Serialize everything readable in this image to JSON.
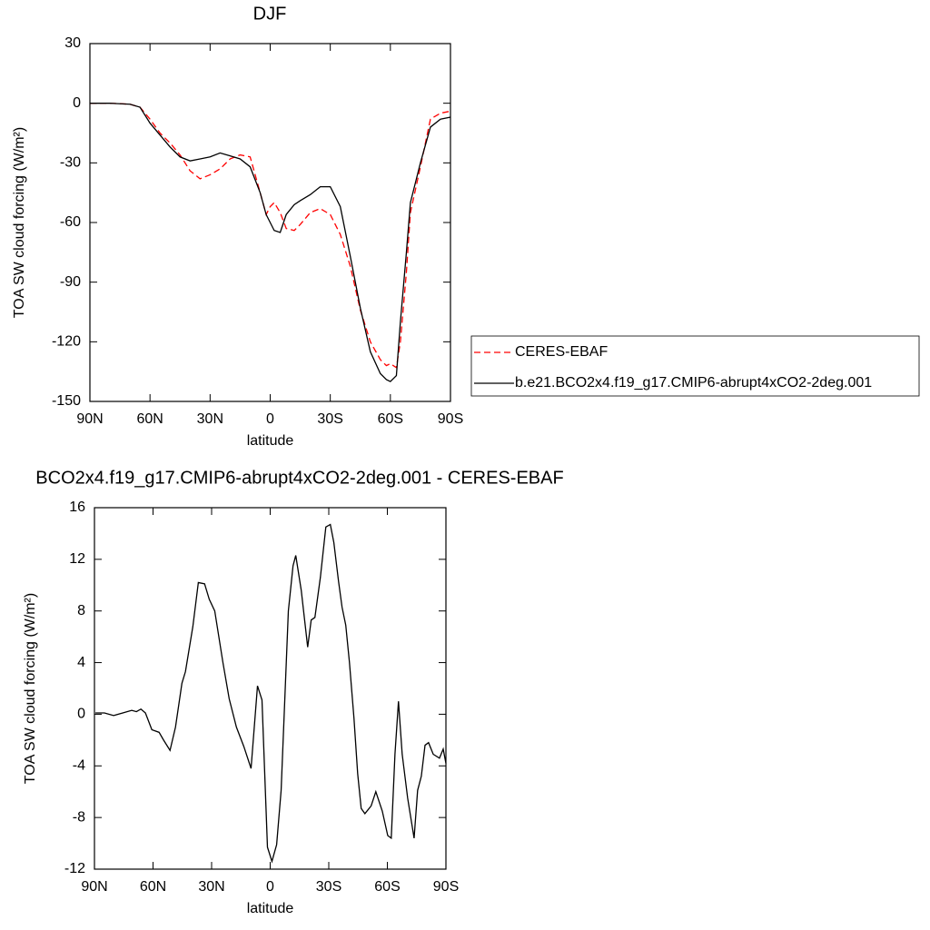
{
  "chart_data": [
    {
      "type": "line",
      "title": "DJF",
      "xlabel": "latitude",
      "ylabel": "TOA SW cloud forcing (W/m²)",
      "x": [
        90,
        80,
        70,
        65,
        60,
        55,
        50,
        45,
        40,
        35,
        30,
        25,
        20,
        15,
        10,
        5,
        2,
        0,
        -2,
        -5,
        -8,
        -12,
        -15,
        -20,
        -25,
        -30,
        -35,
        -40,
        -45,
        -50,
        -55,
        -58,
        -60,
        -63,
        -65,
        -68,
        -70,
        -75,
        -80,
        -85,
        -90
      ],
      "series": [
        {
          "name": "CERES-EBAF",
          "color": "#ff0000",
          "style": "dashed",
          "values": [
            0,
            0,
            -0.5,
            -2,
            -8,
            -15,
            -20,
            -26,
            -34,
            -38,
            -36,
            -33,
            -28,
            -26,
            -27,
            -45,
            -56,
            -52,
            -50,
            -55,
            -63,
            -64,
            -61,
            -55,
            -53,
            -56,
            -66,
            -82,
            -104,
            -120,
            -129,
            -132,
            -131,
            -133,
            -120,
            -85,
            -55,
            -32,
            -8,
            -5,
            -4
          ]
        },
        {
          "name": "b.e21.BCO2x4.f19_g17.CMIP6-abrupt4xCO2-2deg.001",
          "color": "#000000",
          "style": "solid",
          "values": [
            0,
            0,
            -0.5,
            -2,
            -10,
            -16,
            -22,
            -27,
            -29,
            -28,
            -27,
            -25,
            -26.5,
            -28,
            -32,
            -45,
            -56,
            -60,
            -64,
            -65,
            -56,
            -51,
            -49,
            -46,
            -42,
            -42,
            -52,
            -77,
            -103,
            -125,
            -136,
            -139,
            -140,
            -137,
            -110,
            -75,
            -50,
            -30,
            -12,
            -8,
            -7
          ]
        }
      ],
      "xlim": [
        90,
        -90
      ],
      "xticks": [
        {
          "value": 90,
          "label": "90N"
        },
        {
          "value": 60,
          "label": "60N"
        },
        {
          "value": 30,
          "label": "30N"
        },
        0,
        {
          "value": -30,
          "label": "30S"
        },
        {
          "value": -60,
          "label": "60S"
        },
        {
          "value": -90,
          "label": "90S"
        }
      ],
      "ylim": [
        -150,
        30
      ],
      "yticks": [
        -150,
        -120,
        -90,
        -60,
        -30,
        0,
        30
      ],
      "legend": "right"
    },
    {
      "type": "line",
      "title": "BCO2x4.f19_g17.CMIP6-abrupt4xCO2-2deg.001 - CERES-EBAF",
      "xlabel": "latitude",
      "ylabel": "TOA SW cloud forcing (W/m²)",
      "x": [
        89.5,
        84.9,
        80.2,
        75.5,
        70.9,
        68.5,
        66.2,
        63.9,
        60.6,
        56.9,
        54.6,
        51.3,
        48.5,
        45.2,
        43.4,
        39.6,
        36.8,
        33.6,
        31.2,
        28.4,
        24.2,
        21,
        17.3,
        13.5,
        9.8,
        6.5,
        4.2,
        1.4,
        -0.9,
        -3.3,
        -5.6,
        -9.3,
        -11.7,
        -13.1,
        -15.9,
        -19.2,
        -21,
        -22.9,
        -25.7,
        -28.5,
        -30.8,
        -32.6,
        -35,
        -36.8,
        -38.7,
        -40.6,
        -42.9,
        -44.8,
        -46.6,
        -48.5,
        -51.7,
        -54.1,
        -57.4,
        -60.2,
        -62,
        -63.9,
        -65.7,
        -67.6,
        -70.4,
        -73.7,
        -75.5,
        -77.4,
        -79.3,
        -81.1,
        -83.5,
        -86.7,
        -88.6,
        -90
      ],
      "series": [
        {
          "color": "#000000",
          "style": "solid",
          "values": [
            0.1,
            0.1,
            -0.1,
            0.1,
            0.3,
            0.2,
            0.4,
            0.1,
            -1.2,
            -1.4,
            -2,
            -2.8,
            -1,
            2.4,
            3.3,
            6.8,
            10.2,
            10.1,
            8.9,
            8,
            4,
            1.2,
            -1,
            -2.5,
            -4.2,
            2.2,
            1.1,
            -10.3,
            -11.4,
            -10.1,
            -5.9,
            8,
            11.5,
            12.3,
            9.6,
            5.2,
            7.3,
            7.5,
            10.6,
            14.5,
            14.7,
            13.3,
            10.3,
            8.3,
            6.9,
            4,
            -0.3,
            -4.6,
            -7.3,
            -7.7,
            -7.1,
            -6,
            -7.5,
            -9.4,
            -9.6,
            -3.1,
            1,
            -3.1,
            -6.5,
            -9.6,
            -5.9,
            -4.8,
            -2.4,
            -2.2,
            -3.1,
            -3.4,
            -2.7,
            -3.8
          ]
        }
      ],
      "xlim": [
        90,
        -90
      ],
      "xticks": [
        {
          "value": 90,
          "label": "90N"
        },
        {
          "value": 60,
          "label": "60N"
        },
        {
          "value": 30,
          "label": "30N"
        },
        0,
        {
          "value": -30,
          "label": "30S"
        },
        {
          "value": -60,
          "label": "60S"
        },
        {
          "value": -90,
          "label": "90S"
        }
      ],
      "ylim": [
        -12,
        16
      ],
      "yticks": [
        -12,
        -8,
        -4,
        0,
        4,
        8,
        12,
        16
      ]
    }
  ]
}
